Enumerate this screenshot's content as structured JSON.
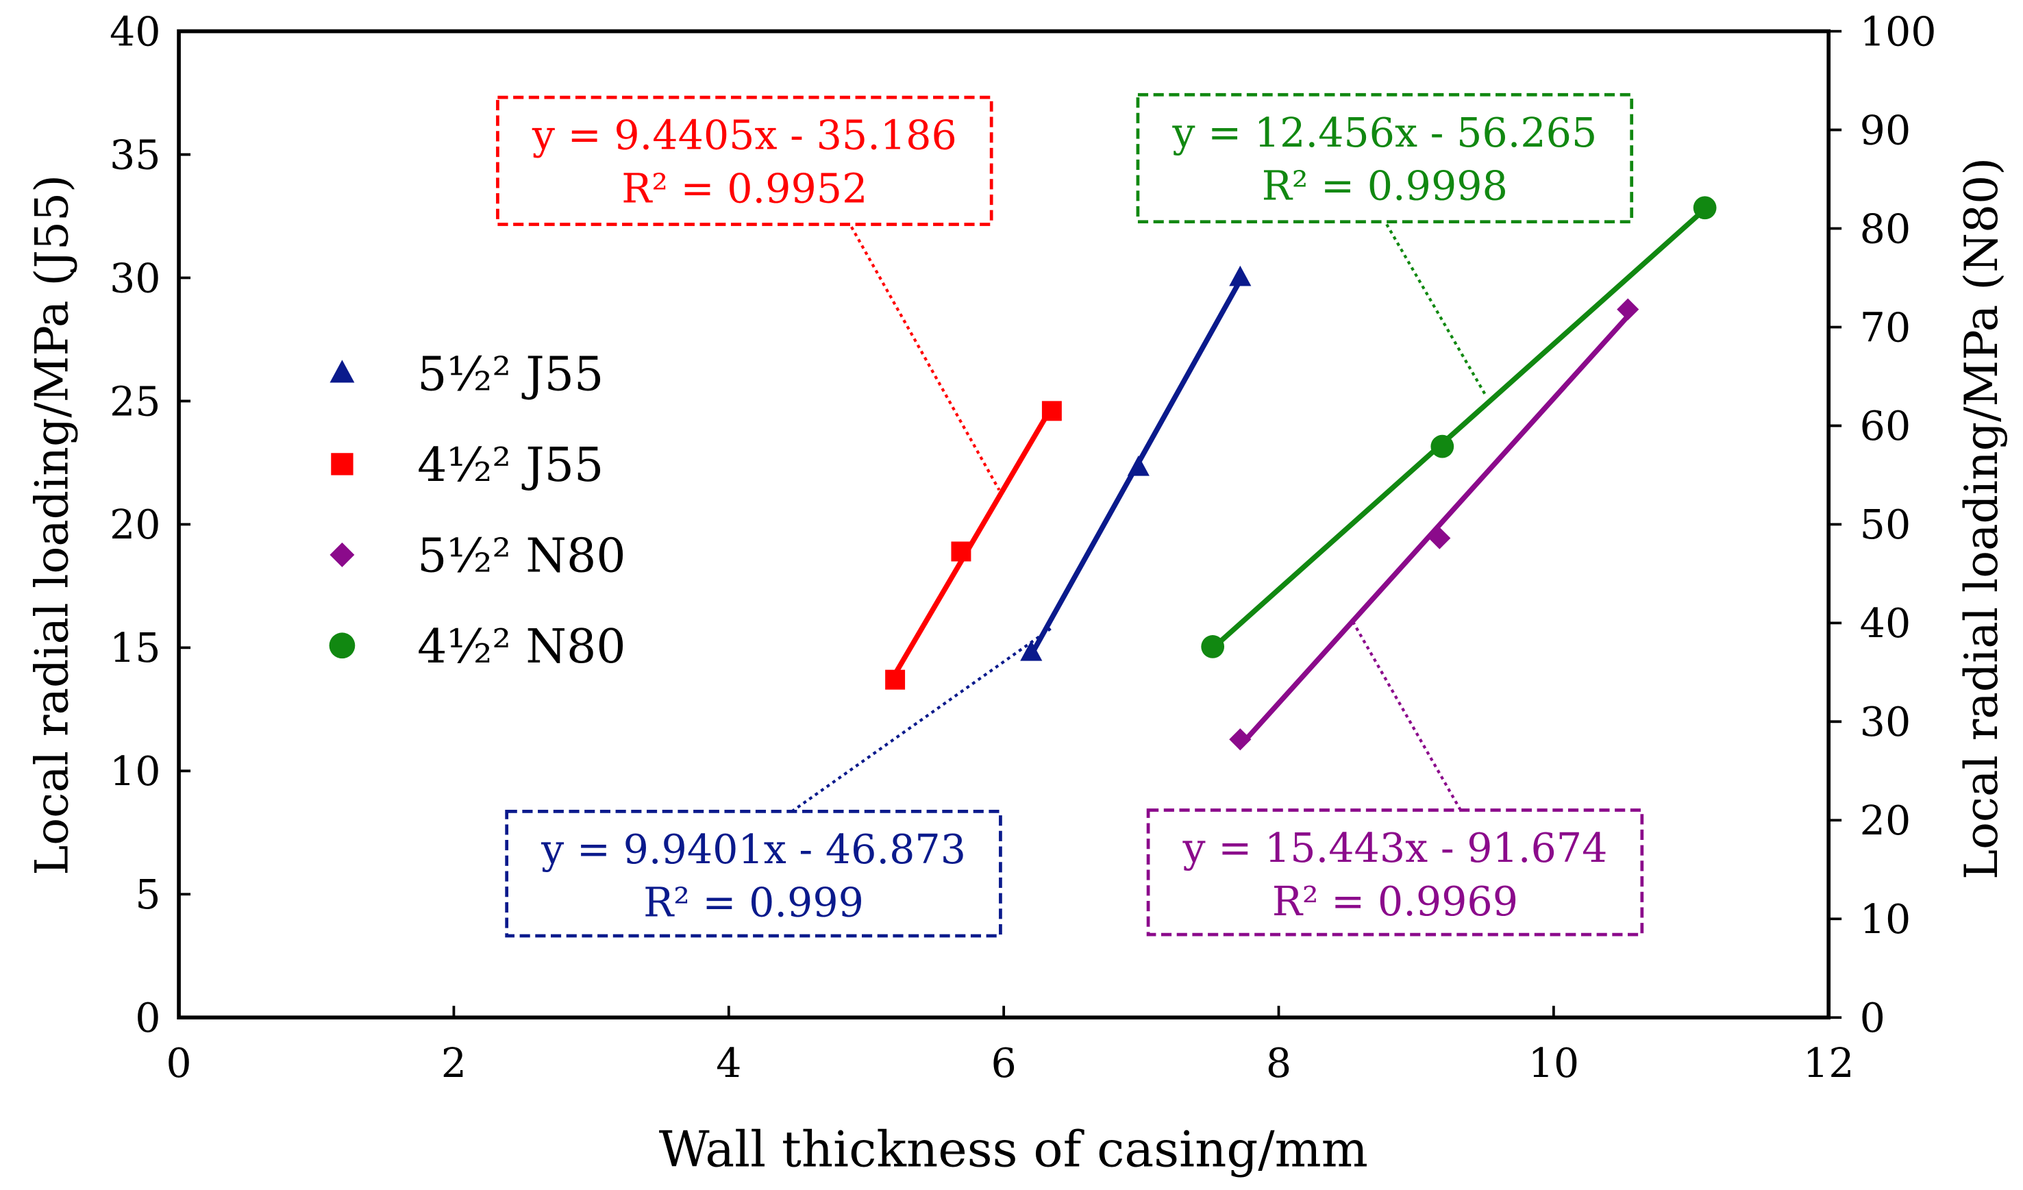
{
  "chart_data": {
    "type": "scatter",
    "title": "",
    "xlabel": "Wall thickness of casing/mm",
    "ylabel": "Local radial loading/MPa (J55)",
    "y2label": "Local radial loading/MPa (N80)",
    "xlim": [
      0,
      12
    ],
    "ylim": [
      0,
      40
    ],
    "y2lim": [
      0,
      100
    ],
    "x_ticks": [
      "0",
      "2",
      "4",
      "6",
      "8",
      "10",
      "12"
    ],
    "y_ticks": [
      "0",
      "5",
      "10",
      "15",
      "20",
      "25",
      "30",
      "35",
      "40"
    ],
    "y2_ticks": [
      "0",
      "10",
      "20",
      "30",
      "40",
      "50",
      "60",
      "70",
      "80",
      "90",
      "100"
    ],
    "grid": false,
    "legend_position": "left",
    "series": [
      {
        "name": "5½² J55",
        "axis": "left",
        "marker": "triangle",
        "color": "#0a1a8c",
        "x": [
          6.2,
          6.98,
          7.72
        ],
        "y": [
          14.8,
          22.3,
          30.0
        ],
        "equation": "y = 9.9401x - 46.873",
        "r2": "R² = 0.999"
      },
      {
        "name": "4½² J55",
        "axis": "left",
        "marker": "square",
        "color": "#ff0000",
        "x": [
          5.21,
          5.69,
          6.35
        ],
        "y": [
          13.7,
          18.9,
          24.6
        ],
        "equation": "y = 9.4405x - 35.186",
        "r2": "R² = 0.9952"
      },
      {
        "name": "5½² N80",
        "axis": "right",
        "marker": "diamond",
        "color": "#8b0a8b",
        "x": [
          7.72,
          9.17,
          10.54
        ],
        "y": [
          28.2,
          48.6,
          71.8
        ],
        "equation": "y = 15.443x - 91.674",
        "r2": "R² = 0.9969"
      },
      {
        "name": "4½² N80",
        "axis": "right",
        "marker": "circle",
        "color": "#118811",
        "x": [
          7.52,
          9.19,
          11.1
        ],
        "y": [
          37.6,
          57.9,
          82.1
        ],
        "equation": "y = 12.456x - 56.265",
        "r2": "R² = 0.9998"
      }
    ]
  }
}
